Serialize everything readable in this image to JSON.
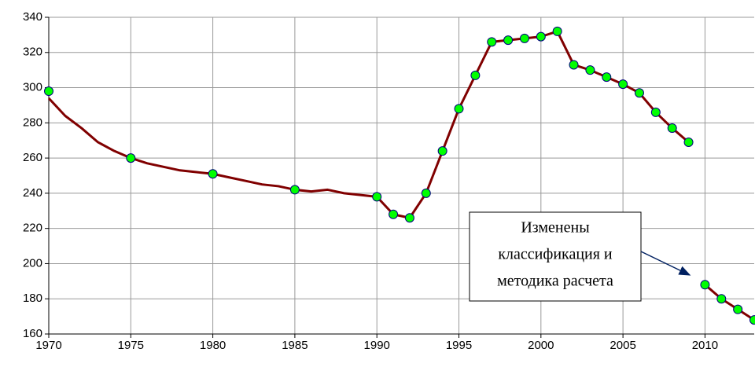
{
  "chart_data": {
    "type": "line",
    "xlim": [
      1970,
      2013
    ],
    "xticks": [
      1970,
      1975,
      1980,
      1985,
      1990,
      1995,
      2000,
      2005,
      2010
    ],
    "ylim": [
      160,
      340
    ],
    "yticks": [
      160,
      180,
      200,
      220,
      240,
      260,
      280,
      300,
      320,
      340
    ],
    "grid": true,
    "series": [
      {
        "color": "#800000",
        "markers": false,
        "x": [
          1970,
          1971,
          1972,
          1973,
          1974,
          1975,
          1976,
          1977,
          1978,
          1979,
          1980,
          1981,
          1982,
          1983,
          1984,
          1985,
          1986,
          1987,
          1988,
          1989,
          1990,
          1991,
          1992,
          1993,
          1994,
          1995,
          1996,
          1997,
          1998,
          1999,
          2000,
          2001,
          2002,
          2003,
          2004,
          2005,
          2006,
          2007,
          2008,
          2009
        ],
        "values": [
          294,
          284,
          277,
          269,
          264,
          260,
          257,
          255,
          253,
          252,
          251,
          249,
          247,
          245,
          244,
          242,
          241,
          242,
          240,
          239,
          238,
          228,
          226,
          240,
          264,
          288,
          307,
          326,
          327,
          328,
          329,
          332,
          313,
          310,
          306,
          302,
          297,
          286,
          277,
          269
        ]
      },
      {
        "color": "#800000",
        "markers": false,
        "x": [
          2010,
          2011,
          2012,
          2013
        ],
        "values": [
          188,
          180,
          174,
          168
        ]
      },
      {
        "color": "#00ff00",
        "markers": true,
        "x": [
          1970,
          1975,
          1980,
          1985,
          1990,
          1991,
          1992,
          1993,
          1994,
          1995,
          1996,
          1997,
          1998,
          1999,
          2000,
          2001,
          2002,
          2003,
          2004,
          2005,
          2006,
          2007,
          2008,
          2009,
          2010,
          2011,
          2012,
          2013
        ],
        "values": [
          298,
          260,
          251,
          242,
          238,
          228,
          226,
          240,
          264,
          288,
          307,
          326,
          327,
          328,
          329,
          332,
          313,
          310,
          306,
          302,
          297,
          286,
          277,
          269,
          188,
          180,
          174,
          168
        ]
      }
    ],
    "annotation": {
      "lines": [
        "Изменены",
        "классификация и",
        "методика расчета"
      ]
    }
  }
}
